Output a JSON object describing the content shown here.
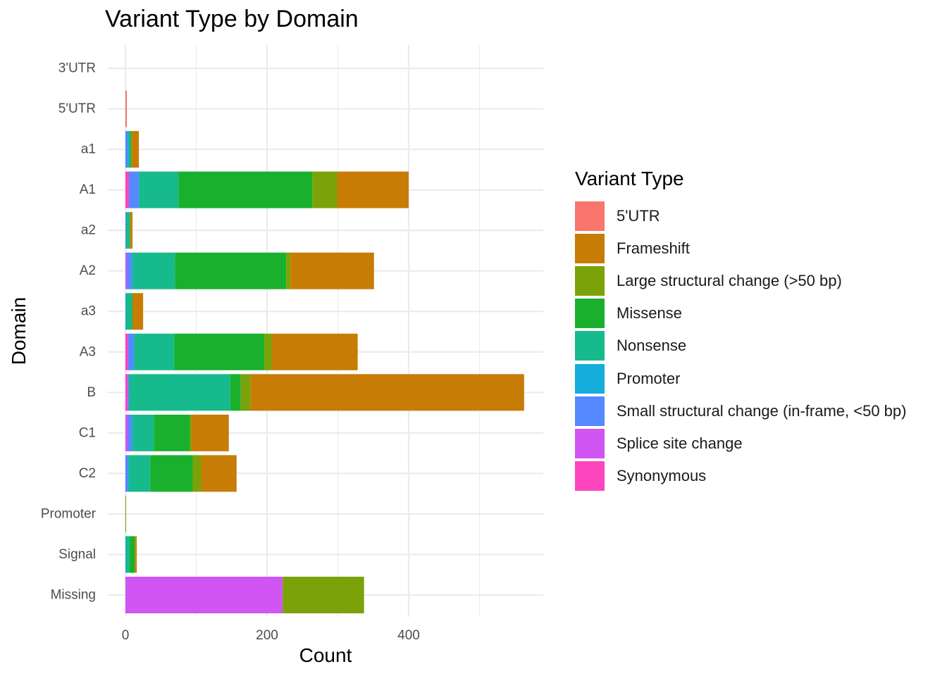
{
  "chart_data": {
    "type": "bar",
    "orientation": "horizontal",
    "stacked": true,
    "title": "Variant Type by Domain",
    "xlabel": "Count",
    "ylabel": "Domain",
    "xlim": [
      0,
      560
    ],
    "xticks": [
      0,
      200,
      400
    ],
    "grid": true,
    "legend_position": "right",
    "legend_title": "Variant Type",
    "categories": [
      "3'UTR",
      "5'UTR",
      "a1",
      "A1",
      "a2",
      "A2",
      "a3",
      "A3",
      "B",
      "C1",
      "C2",
      "Promoter",
      "Signal",
      "Missing"
    ],
    "series": [
      {
        "name": "5'UTR",
        "color": "#F8766D",
        "values": [
          0,
          2,
          0,
          0,
          0,
          0,
          0,
          0,
          0,
          0,
          0,
          0,
          0,
          0
        ]
      },
      {
        "name": "Frameshift",
        "color": "#C77C05",
        "values": [
          0,
          0,
          10,
          101,
          3,
          118,
          15,
          121,
          386,
          53,
          50,
          0,
          2,
          0
        ]
      },
      {
        "name": "Large structural change (>50 bp)",
        "color": "#7CA209",
        "values": [
          0,
          0,
          1,
          35,
          1,
          6,
          0,
          11,
          14,
          2,
          12,
          1,
          1,
          115
        ]
      },
      {
        "name": "Missense",
        "color": "#1AB02E",
        "values": [
          0,
          0,
          1,
          189,
          0,
          157,
          1,
          127,
          15,
          51,
          60,
          0,
          7,
          0
        ]
      },
      {
        "name": "Nonsense",
        "color": "#17BA8D",
        "values": [
          0,
          0,
          2,
          56,
          5,
          60,
          8,
          57,
          143,
          30,
          30,
          0,
          5,
          0
        ]
      },
      {
        "name": "Promoter",
        "color": "#14ADDC",
        "values": [
          0,
          0,
          2,
          0,
          0,
          0,
          1,
          0,
          0,
          0,
          1,
          0,
          1,
          0
        ]
      },
      {
        "name": "Small structural change (in-frame, <50 bp)",
        "color": "#5689FF",
        "values": [
          0,
          0,
          3,
          14,
          1,
          8,
          0,
          8,
          1,
          7,
          4,
          0,
          0,
          0
        ]
      },
      {
        "name": "Splice site change",
        "color": "#D055F2",
        "values": [
          0,
          0,
          0,
          0,
          0,
          2,
          0,
          1,
          2,
          3,
          0,
          0,
          0,
          222
        ]
      },
      {
        "name": "Synonymous",
        "color": "#FD45BE",
        "values": [
          0,
          0,
          0,
          5,
          0,
          0,
          0,
          3,
          2,
          0,
          0,
          0,
          0,
          0
        ]
      }
    ]
  }
}
